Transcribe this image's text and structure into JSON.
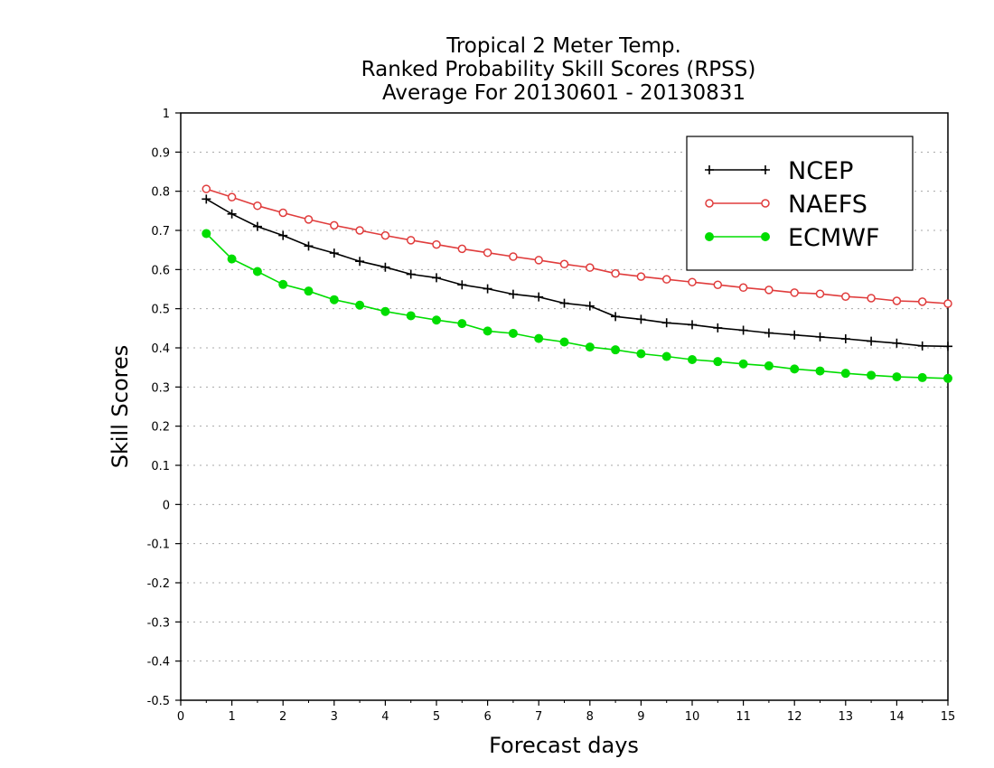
{
  "chart_data": {
    "type": "line",
    "title": [
      "Tropical 2 Meter Temp.",
      "Ranked Probability Skill Scores (RPSS)",
      "Average For 20130601 - 20130831"
    ],
    "xlabel": "Forecast days",
    "ylabel": "Skill Scores",
    "xlim": [
      0,
      15
    ],
    "ylim": [
      -0.5,
      1
    ],
    "xticks": [
      "0",
      "1",
      "2",
      "3",
      "4",
      "5",
      "6",
      "7",
      "8",
      "9",
      "10",
      "11",
      "12",
      "13",
      "14",
      "15"
    ],
    "yticks": [
      "1",
      "0.9",
      "0.8",
      "0.7",
      "0.6",
      "0.5",
      "0.4",
      "0.3",
      "0.2",
      "0.1",
      "0",
      "-0.1",
      "-0.2",
      "-0.3",
      "-0.4",
      "-0.5"
    ],
    "grid": "horizontal dotted",
    "legend_position": "top-right",
    "x": [
      0.5,
      1,
      1.5,
      2,
      2.5,
      3,
      3.5,
      4,
      4.5,
      5,
      5.5,
      6,
      6.5,
      7,
      7.5,
      8,
      8.5,
      9,
      9.5,
      10,
      10.5,
      11,
      11.5,
      12,
      12.5,
      13,
      13.5,
      14,
      14.5,
      15
    ],
    "series": [
      {
        "name": "NCEP",
        "color": "#000000",
        "marker": "plus",
        "values": [
          0.78,
          0.742,
          0.71,
          0.687,
          0.66,
          0.642,
          0.621,
          0.606,
          0.588,
          0.579,
          0.561,
          0.551,
          0.537,
          0.53,
          0.514,
          0.507,
          0.48,
          0.473,
          0.464,
          0.459,
          0.451,
          0.445,
          0.438,
          0.433,
          0.428,
          0.423,
          0.417,
          0.412,
          0.405,
          0.404
        ]
      },
      {
        "name": "NAEFS",
        "color": "#e03c3c",
        "marker": "open-circle",
        "values": [
          0.806,
          0.785,
          0.763,
          0.745,
          0.728,
          0.713,
          0.7,
          0.687,
          0.675,
          0.664,
          0.653,
          0.643,
          0.633,
          0.624,
          0.614,
          0.605,
          0.59,
          0.582,
          0.575,
          0.568,
          0.561,
          0.554,
          0.548,
          0.541,
          0.538,
          0.531,
          0.527,
          0.52,
          0.518,
          0.513
        ]
      },
      {
        "name": "ECMWF",
        "color": "#00dd00",
        "marker": "filled-circle",
        "values": [
          0.692,
          0.627,
          0.595,
          0.562,
          0.545,
          0.523,
          0.509,
          0.493,
          0.482,
          0.471,
          0.462,
          0.443,
          0.437,
          0.424,
          0.415,
          0.402,
          0.395,
          0.385,
          0.378,
          0.37,
          0.365,
          0.359,
          0.354,
          0.346,
          0.341,
          0.335,
          0.33,
          0.326,
          0.324,
          0.322
        ]
      }
    ]
  }
}
